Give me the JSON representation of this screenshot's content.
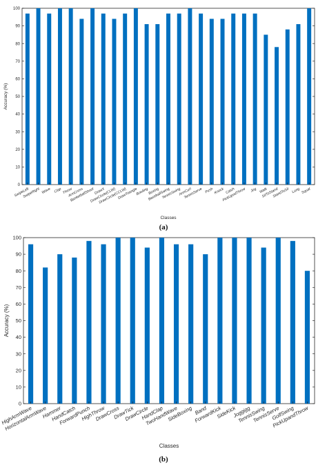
{
  "chart_data": [
    {
      "type": "bar",
      "panel_label": "(a)",
      "xlabel": "Classes",
      "ylabel": "Accuracy (%)",
      "ylim": [
        0,
        100
      ],
      "yticks": [
        0,
        10,
        20,
        30,
        40,
        50,
        60,
        70,
        80,
        90,
        100
      ],
      "bar_color": "#0070C0",
      "categories": [
        "SwipeLeft",
        "SwipeRight",
        "Wave",
        "Clap",
        "Throw",
        "ArmCross",
        "BasketballShoot",
        "DrawX",
        "DrawCircle(CLW)",
        "DrawCircle(CCLW)",
        "DrawTriangle",
        "Bowling",
        "Boxing",
        "BaseballSwing",
        "TennisSwing",
        "ArmCurl",
        "TennisServe",
        "Push",
        "Knock",
        "Catch",
        "PickUpndThrow",
        "Jog",
        "Walk",
        "SitToStand",
        "StandToSit",
        "Lung",
        "Squat"
      ],
      "values": [
        97,
        100,
        97,
        100,
        100,
        94,
        100,
        97,
        94,
        97,
        100,
        91,
        91,
        97,
        97,
        100,
        97,
        94,
        94,
        97,
        97,
        97,
        85,
        78,
        88,
        91,
        100
      ]
    },
    {
      "type": "bar",
      "panel_label": "(b)",
      "xlabel": "Classes",
      "ylabel": "Accuracy (%)",
      "ylim": [
        0,
        100
      ],
      "yticks": [
        0,
        10,
        20,
        30,
        40,
        50,
        60,
        70,
        80,
        90,
        100
      ],
      "bar_color": "#0070C0",
      "categories": [
        "HighArmWave",
        "HorizontalArmWave",
        "Hammer",
        "HandCatch",
        "ForwardPunch",
        "HighThrow",
        "DrawCross",
        "DrawTick",
        "DrawCircle",
        "HandClap",
        "TwoHandWave",
        "SideBoxing",
        "Band",
        "ForwardKick",
        "SideKick",
        "Joggigg",
        "TennisSwing",
        "TennisServe",
        "GolfSwing",
        "PickUpandThrow"
      ],
      "values": [
        96,
        82,
        90,
        88,
        98,
        96,
        100,
        100,
        94,
        100,
        96,
        96,
        90,
        100,
        100,
        100,
        94,
        100,
        98,
        80
      ]
    }
  ]
}
